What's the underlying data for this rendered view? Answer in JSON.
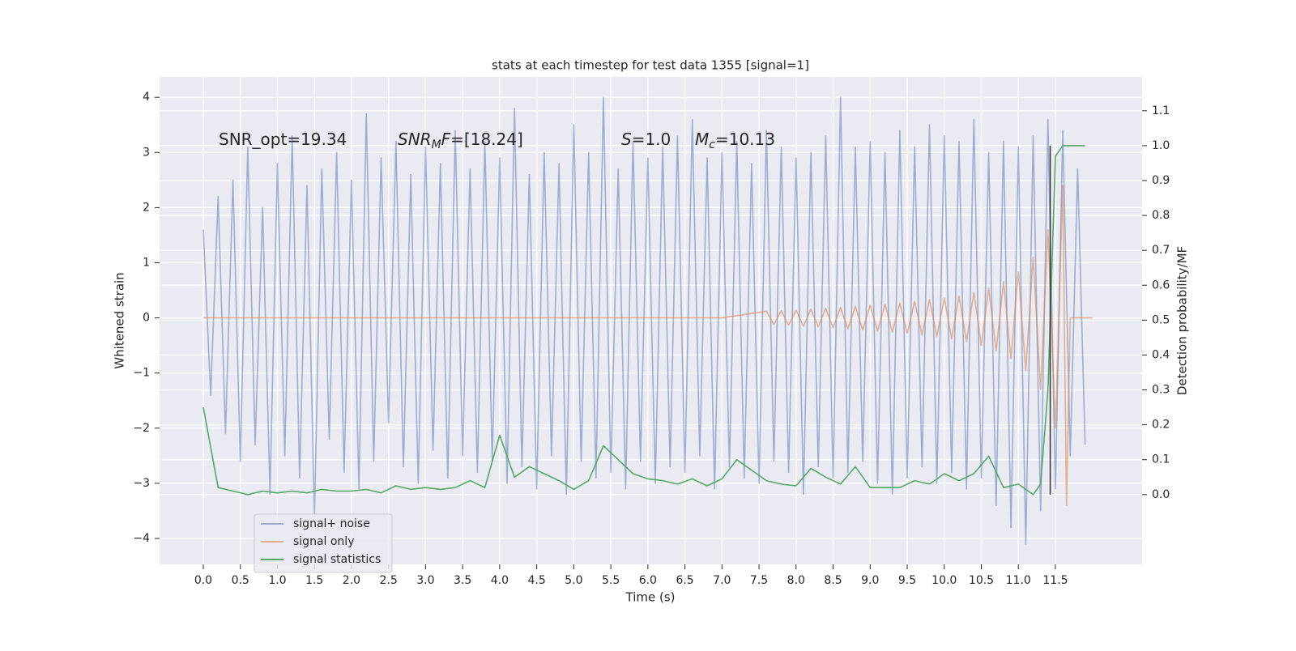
{
  "chart_data": {
    "type": "line",
    "title": "stats at each timestep for test data 1355 [signal=1]",
    "x_label": "Time (s)",
    "y_label": "Whitened strain",
    "y2_label": "Detection probability/MF",
    "xlim": [
      -0.59,
      12.67
    ],
    "ylim": [
      -4.47,
      4.37
    ],
    "y2lim": [
      -0.2,
      1.197
    ],
    "xticks": [
      {
        "value": 0,
        "label": "0.0"
      },
      0.5,
      {
        "value": 1,
        "label": "1.0"
      },
      1.5,
      {
        "value": 2,
        "label": "2.0"
      },
      2.5,
      {
        "value": 3,
        "label": "3.0"
      },
      3.5,
      {
        "value": 4,
        "label": "4.0"
      },
      4.5,
      {
        "value": 5,
        "label": "5.0"
      },
      5.5,
      {
        "value": 6,
        "label": "6.0"
      },
      6.5,
      {
        "value": 7,
        "label": "7.0"
      },
      7.5,
      {
        "value": 8,
        "label": "8.0"
      },
      8.5,
      {
        "value": 9,
        "label": "9.0"
      },
      9.5,
      {
        "value": 10,
        "label": "10.0"
      },
      10.5,
      {
        "value": 11,
        "label": "11.0"
      },
      11.5
    ],
    "yticks": [
      {
        "value": -4,
        "label": "−4"
      },
      {
        "value": -3,
        "label": "−3"
      },
      {
        "value": -2,
        "label": "−2"
      },
      {
        "value": -1,
        "label": "−1"
      },
      0,
      1,
      2,
      3,
      4
    ],
    "y2ticks": [
      {
        "value": 0,
        "label": "0.0"
      },
      0.1,
      0.2,
      0.3,
      0.4,
      0.5,
      0.6,
      0.7,
      0.8,
      0.9,
      {
        "value": 1,
        "label": "1.0"
      },
      1.1
    ],
    "grid": true,
    "legend": "lower left",
    "annotations": [
      [
        {
          "text": "SNR_opt=19.34",
          "style": "normal"
        }
      ],
      [
        {
          "text": "SNR",
          "style": "italic"
        },
        {
          "text": "M",
          "style": "sub"
        },
        {
          "text": "F",
          "style": "italic"
        },
        {
          "text": "=[18.24]",
          "style": "normal"
        }
      ],
      [
        {
          "text": "S",
          "style": "italic"
        },
        {
          "text": "=1.0",
          "style": "normal"
        }
      ],
      [
        {
          "text": "M",
          "style": "italic"
        },
        {
          "text": "c",
          "style": "sub"
        },
        {
          "text": "=10.13",
          "style": "normal"
        }
      ]
    ],
    "vline": {
      "x": 11.43,
      "ymin": 0,
      "ymax": 1.0,
      "axis": "y2",
      "color": "#333333"
    },
    "series": [
      {
        "name": "signal+ noise",
        "color": "#4c72b0",
        "opacity": 0.5,
        "x": [
          0.0,
          0.1,
          0.2,
          0.3,
          0.4,
          0.5,
          0.6,
          0.7,
          0.8,
          0.9,
          1.0,
          1.1,
          1.2,
          1.3,
          1.4,
          1.5,
          1.6,
          1.7,
          1.8,
          1.9,
          2.0,
          2.1,
          2.2,
          2.3,
          2.4,
          2.5,
          2.6,
          2.7,
          2.8,
          2.9,
          3.0,
          3.1,
          3.2,
          3.3,
          3.4,
          3.5,
          3.6,
          3.7,
          3.8,
          3.9,
          4.0,
          4.1,
          4.2,
          4.3,
          4.4,
          4.5,
          4.6,
          4.7,
          4.8,
          4.9,
          5.0,
          5.1,
          5.2,
          5.3,
          5.4,
          5.5,
          5.6,
          5.7,
          5.8,
          5.9,
          6.0,
          6.1,
          6.2,
          6.3,
          6.4,
          6.5,
          6.6,
          6.7,
          6.8,
          6.9,
          7.0,
          7.1,
          7.2,
          7.3,
          7.4,
          7.5,
          7.6,
          7.7,
          7.8,
          7.9,
          8.0,
          8.1,
          8.2,
          8.3,
          8.4,
          8.5,
          8.6,
          8.7,
          8.8,
          8.9,
          9.0,
          9.1,
          9.2,
          9.3,
          9.4,
          9.5,
          9.6,
          9.7,
          9.8,
          9.9,
          10.0,
          10.1,
          10.2,
          10.3,
          10.4,
          10.5,
          10.6,
          10.7,
          10.8,
          10.9,
          11.0,
          11.1,
          11.2,
          11.3,
          11.4,
          11.5,
          11.6,
          11.7,
          11.8,
          11.9
        ],
        "values": [
          1.6,
          -1.4,
          2.2,
          -2.1,
          2.5,
          -2.6,
          3.1,
          -2.3,
          2.0,
          -3.2,
          2.8,
          -2.5,
          3.3,
          -2.9,
          2.4,
          -3.6,
          2.7,
          -2.2,
          3.0,
          -2.8,
          2.5,
          -3.1,
          3.7,
          -2.6,
          2.9,
          -1.9,
          3.2,
          -2.7,
          2.6,
          -3.0,
          3.1,
          -2.4,
          2.8,
          -2.9,
          3.4,
          -2.5,
          2.7,
          -2.8,
          3.2,
          -2.6,
          2.9,
          -3.0,
          3.8,
          -2.7,
          2.6,
          -3.1,
          3.0,
          -2.5,
          2.8,
          -3.2,
          3.5,
          -2.6,
          3.0,
          -2.9,
          4.0,
          -2.8,
          2.7,
          -3.1,
          3.2,
          -2.6,
          2.9,
          -3.0,
          3.1,
          -2.7,
          3.3,
          -2.8,
          3.6,
          -2.5,
          2.9,
          -3.1,
          3.0,
          -2.7,
          3.2,
          -2.9,
          2.8,
          -3.0,
          3.4,
          -2.6,
          3.1,
          -2.8,
          2.9,
          -3.2,
          3.0,
          -2.7,
          3.3,
          -2.9,
          4.0,
          -2.8,
          3.1,
          -2.6,
          3.2,
          -3.0,
          3.0,
          -3.2,
          3.4,
          -2.9,
          3.1,
          -2.7,
          3.5,
          -3.0,
          3.3,
          -2.8,
          3.2,
          -3.1,
          3.6,
          -2.9,
          3.0,
          -3.4,
          3.2,
          -3.8,
          3.1,
          -4.1,
          3.3,
          -3.5,
          3.6,
          -3.1,
          3.4,
          -2.5,
          2.7,
          -2.3
        ]
      },
      {
        "name": "signal only",
        "color": "#dd8452",
        "opacity": 0.6,
        "x": [
          0.0,
          7.0,
          7.6,
          7.7,
          7.8,
          7.9,
          8.0,
          8.1,
          8.2,
          8.3,
          8.4,
          8.5,
          8.6,
          8.7,
          8.8,
          8.9,
          9.0,
          9.1,
          9.2,
          9.3,
          9.4,
          9.5,
          9.6,
          9.7,
          9.8,
          9.9,
          10.0,
          10.1,
          10.2,
          10.3,
          10.4,
          10.5,
          10.6,
          10.7,
          10.8,
          10.9,
          11.0,
          11.1,
          11.2,
          11.3,
          11.4,
          11.5,
          11.6,
          11.65,
          11.7,
          12.0
        ],
        "values": [
          0.0,
          0.0,
          0.12,
          -0.12,
          0.13,
          -0.13,
          0.14,
          -0.15,
          0.16,
          -0.16,
          0.17,
          -0.18,
          0.19,
          -0.2,
          0.21,
          -0.22,
          0.23,
          -0.24,
          0.25,
          -0.26,
          0.27,
          -0.28,
          0.3,
          -0.31,
          0.33,
          -0.34,
          0.36,
          -0.38,
          0.4,
          -0.43,
          0.46,
          -0.5,
          0.54,
          -0.6,
          0.66,
          -0.74,
          0.84,
          -0.96,
          1.1,
          -1.3,
          1.6,
          -2.0,
          2.4,
          -3.4,
          0.0,
          0.0
        ]
      },
      {
        "name": "signal statistics",
        "color": "#55a868",
        "opacity": 1,
        "axis": "y2",
        "x": [
          0.0,
          0.2,
          0.4,
          0.6,
          0.8,
          1.0,
          1.2,
          1.4,
          1.6,
          1.8,
          2.0,
          2.2,
          2.4,
          2.6,
          2.8,
          3.0,
          3.2,
          3.4,
          3.6,
          3.8,
          4.0,
          4.2,
          4.4,
          4.6,
          4.8,
          5.0,
          5.2,
          5.4,
          5.6,
          5.8,
          6.0,
          6.2,
          6.4,
          6.6,
          6.8,
          7.0,
          7.2,
          7.4,
          7.6,
          7.8,
          8.0,
          8.2,
          8.4,
          8.6,
          8.8,
          9.0,
          9.2,
          9.4,
          9.6,
          9.8,
          10.0,
          10.2,
          10.4,
          10.6,
          10.8,
          11.0,
          11.2,
          11.3,
          11.4,
          11.5,
          11.6,
          11.7,
          11.8,
          11.9
        ],
        "values": [
          0.25,
          0.02,
          0.01,
          0.0,
          0.01,
          0.005,
          0.01,
          0.005,
          0.015,
          0.01,
          0.01,
          0.015,
          0.005,
          0.025,
          0.015,
          0.02,
          0.015,
          0.02,
          0.04,
          0.02,
          0.17,
          0.05,
          0.08,
          0.06,
          0.04,
          0.015,
          0.04,
          0.14,
          0.1,
          0.06,
          0.045,
          0.04,
          0.03,
          0.045,
          0.025,
          0.045,
          0.1,
          0.07,
          0.04,
          0.03,
          0.025,
          0.075,
          0.05,
          0.03,
          0.08,
          0.02,
          0.02,
          0.02,
          0.04,
          0.03,
          0.06,
          0.04,
          0.06,
          0.11,
          0.02,
          0.03,
          0.0,
          0.03,
          0.3,
          0.97,
          1.0,
          1.0,
          1.0,
          1.0
        ]
      }
    ]
  }
}
